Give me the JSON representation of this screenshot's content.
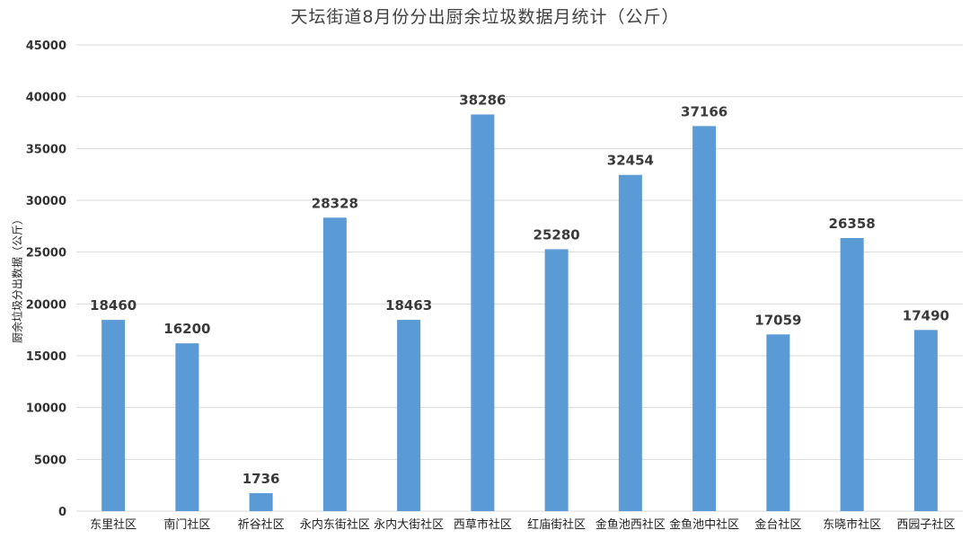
{
  "chart_data": {
    "type": "bar",
    "title": "天坛街道8月份分出厨余垃圾数据月统计（公斤）",
    "xlabel": "",
    "ylabel": "厨余垃圾分出数据（公斤）",
    "categories": [
      "东里社区",
      "南门社区",
      "祈谷社区",
      "永内东街社区",
      "永内大街社区",
      "西草市社区",
      "红庙街社区",
      "金鱼池西社区",
      "金鱼池中社区",
      "金台社区",
      "东晓市社区",
      "西园子社区"
    ],
    "values": [
      18460,
      16200,
      1736,
      28328,
      18463,
      38286,
      25280,
      32454,
      37166,
      17059,
      26358,
      17490
    ],
    "ylim": [
      0,
      45000
    ],
    "yticks": [
      0,
      5000,
      10000,
      15000,
      20000,
      25000,
      30000,
      35000,
      40000,
      45000
    ],
    "grid": true,
    "legend": "none",
    "colors": {
      "bar": "#5b9bd5",
      "grid": "#d9d9d9"
    }
  }
}
